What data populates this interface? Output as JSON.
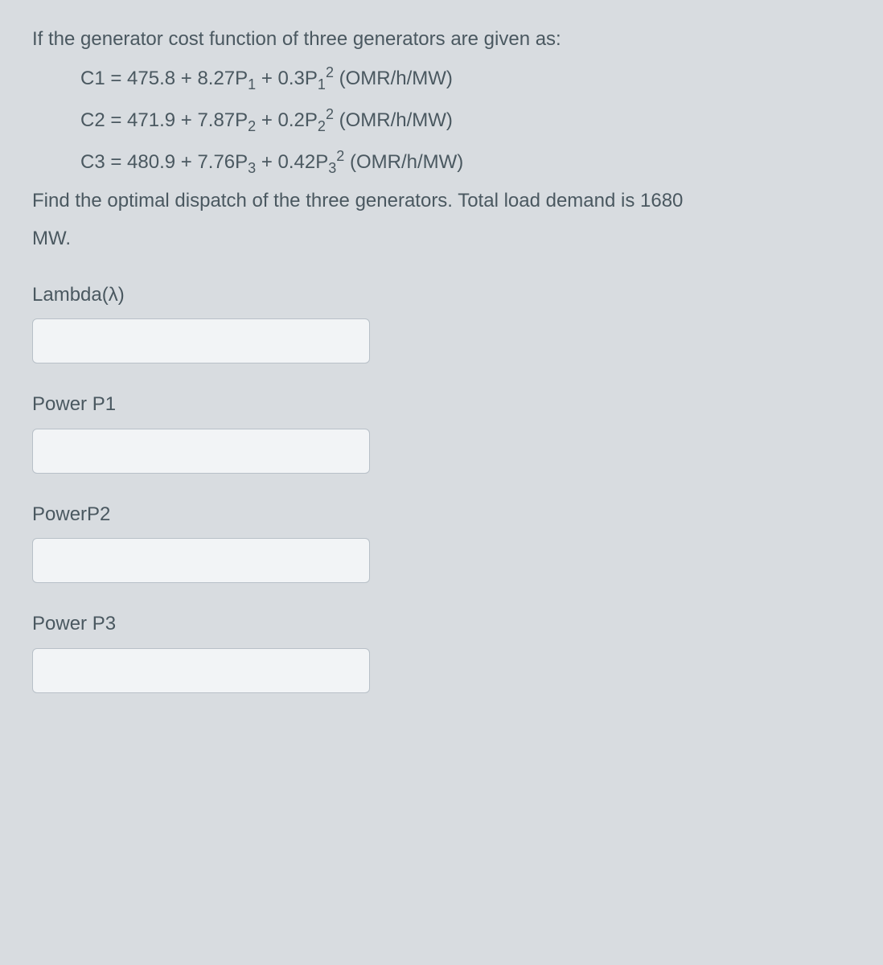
{
  "question": {
    "intro": "If the generator cost function of three generators are given as:",
    "c1_prefix": "C1 = 475.8 + 8.27P",
    "c1_sub": "1",
    "c1_mid": " + 0.3P",
    "c1_sub2": "1",
    "c1_sup": "2",
    "c1_unit": " (OMR/h/MW)",
    "c2_prefix": "C2 = 471.9 + 7.87P",
    "c2_sub": "2",
    "c2_mid": " + 0.2P",
    "c2_sub2": "2",
    "c2_sup": "2",
    "c2_unit": " (OMR/h/MW)",
    "c3_prefix": "C3 = 480.9 + 7.76P",
    "c3_sub": "3",
    "c3_mid": " + 0.42P",
    "c3_sub2": "3",
    "c3_sup": "2",
    "c3_unit": " (OMR/h/MW)",
    "prompt_line1": "Find the optimal dispatch of the three generators. Total load demand is 1680",
    "prompt_line2": "MW."
  },
  "fields": {
    "lambda": {
      "label": "Lambda(λ)",
      "value": ""
    },
    "p1": {
      "label": "Power P1",
      "value": ""
    },
    "p2": {
      "label": "PowerP2",
      "value": ""
    },
    "p3": {
      "label": "Power P3",
      "value": ""
    }
  },
  "colors": {
    "background": "#d8dce0",
    "text": "#4a5860",
    "input_bg": "#f2f4f6",
    "input_border": "#b8c0c8"
  }
}
